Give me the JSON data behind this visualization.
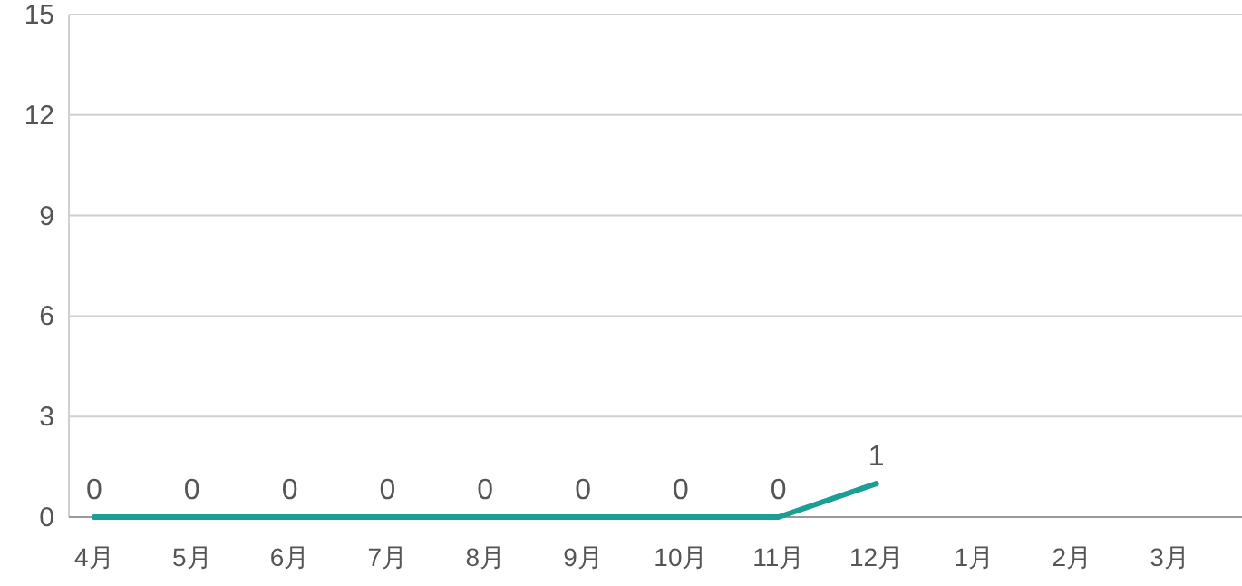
{
  "chart_data": {
    "type": "line",
    "categories": [
      "4月",
      "5月",
      "6月",
      "7月",
      "8月",
      "9月",
      "10月",
      "11月",
      "12月",
      "1月",
      "2月",
      "3月"
    ],
    "series": [
      {
        "color": "#1a9e96",
        "values": [
          0,
          0,
          0,
          0,
          0,
          0,
          0,
          0,
          1,
          null,
          null,
          null
        ]
      }
    ],
    "ylim": [
      0,
      15
    ],
    "yticks": [
      0,
      3,
      6,
      9,
      12,
      15
    ],
    "grid": "y",
    "data_labels": true,
    "marker": "none",
    "line_style": "solid"
  }
}
